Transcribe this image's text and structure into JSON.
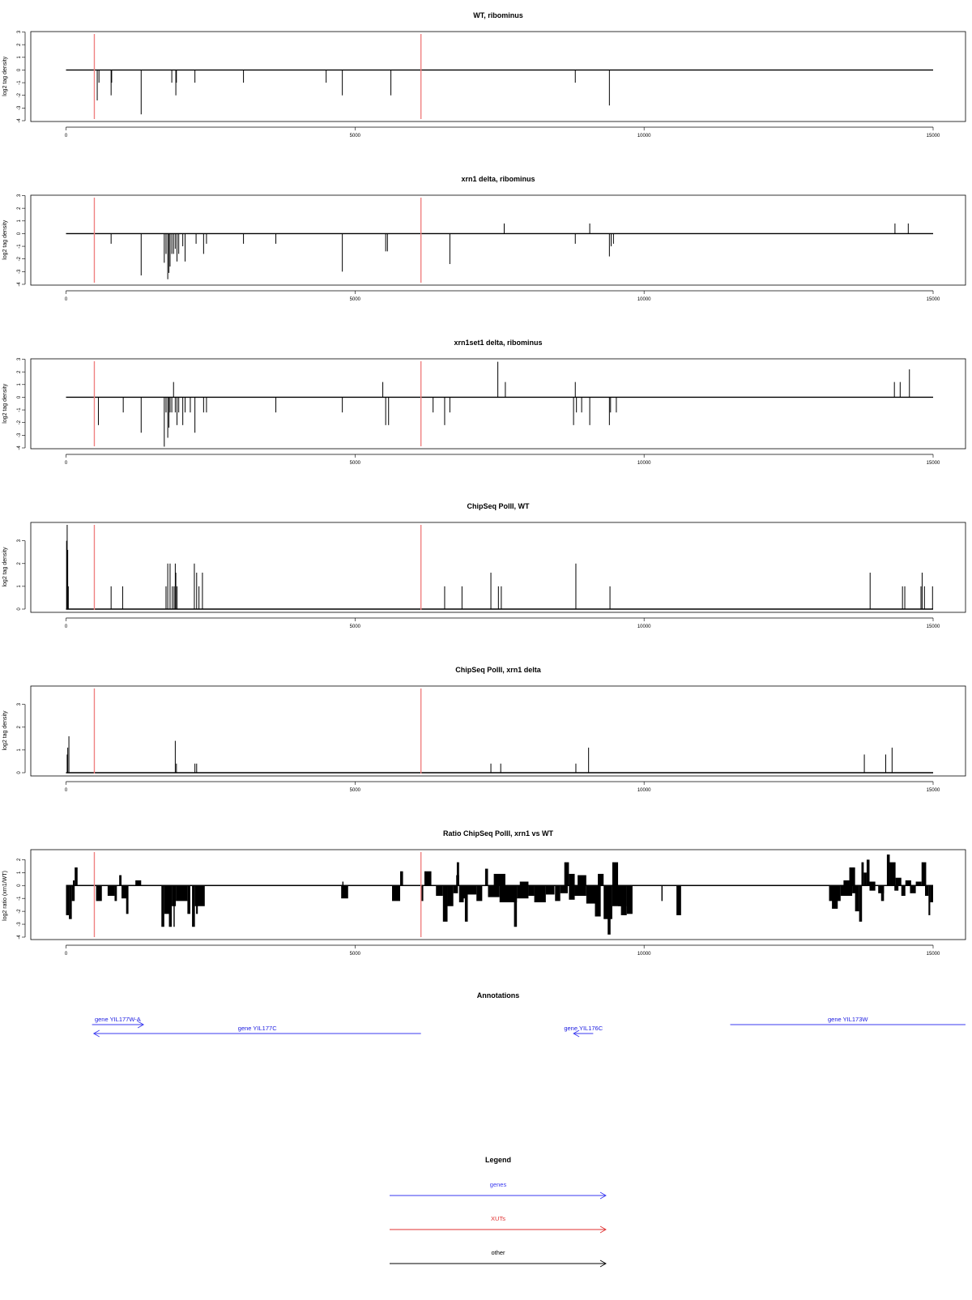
{
  "colors": {
    "xut": "#f08080",
    "gene": "#3a3af0",
    "bar": "#000000",
    "axis": "#000000",
    "legend_xut": "#e03030"
  },
  "chart_data": [
    {
      "type": "bar",
      "title": "WT, ribominus",
      "ylabel": "log2 tag density",
      "xlim": [
        0,
        15000
      ],
      "ylim": [
        -4,
        3
      ],
      "xticks": [
        0,
        5000,
        10000,
        15000
      ],
      "xtick_labels": [
        "0",
        "5000",
        "10000",
        "15000"
      ],
      "yticks": [
        3,
        2,
        1,
        0,
        -1,
        -2,
        -3,
        -4
      ],
      "ytick_labels": [
        "3",
        "2",
        "1",
        "0",
        "-1",
        "-2",
        "-3",
        "-4"
      ],
      "xut_markers": [
        490,
        6140
      ],
      "bars": [
        [
          540,
          -2.4
        ],
        [
          570,
          -1.0
        ],
        [
          780,
          -2.0
        ],
        [
          790,
          -1.0
        ],
        [
          1300,
          -3.5
        ],
        [
          1830,
          -1.0
        ],
        [
          1900,
          -2.0
        ],
        [
          1910,
          -1.0
        ],
        [
          2230,
          -1.0
        ],
        [
          3070,
          -1.0
        ],
        [
          4500,
          -1.0
        ],
        [
          4780,
          -2.0
        ],
        [
          5620,
          -2.0
        ],
        [
          8810,
          -1.0
        ],
        [
          9400,
          -2.8
        ]
      ]
    },
    {
      "type": "bar",
      "title": "xrn1 delta, ribominus",
      "ylabel": "log2 tag density",
      "xlim": [
        0,
        15000
      ],
      "ylim": [
        -4,
        3
      ],
      "xticks": [
        0,
        5000,
        10000,
        15000
      ],
      "xtick_labels": [
        "0",
        "5000",
        "10000",
        "15000"
      ],
      "yticks": [
        3,
        2,
        1,
        0,
        -1,
        -2,
        -3,
        -4
      ],
      "ytick_labels": [
        "3",
        "2",
        "1",
        "0",
        "-1",
        "-2",
        "-3",
        "-4"
      ],
      "xut_markers": [
        490,
        6140
      ],
      "bars": [
        [
          780,
          -0.8
        ],
        [
          1300,
          -3.3
        ],
        [
          1700,
          -2.3
        ],
        [
          1730,
          -1.6
        ],
        [
          1760,
          -3.6
        ],
        [
          1780,
          -3.1
        ],
        [
          1800,
          -2.6
        ],
        [
          1830,
          -1.6
        ],
        [
          1860,
          -1.6
        ],
        [
          1890,
          -1.2
        ],
        [
          1920,
          -2.2
        ],
        [
          1950,
          -1.6
        ],
        [
          2020,
          -1.0
        ],
        [
          2060,
          -2.2
        ],
        [
          2250,
          -0.8
        ],
        [
          2380,
          -1.6
        ],
        [
          2430,
          -0.8
        ],
        [
          3070,
          -0.8
        ],
        [
          3630,
          -0.8
        ],
        [
          4780,
          -3.0
        ],
        [
          5530,
          -1.4
        ],
        [
          5560,
          -1.4
        ],
        [
          6640,
          -2.4
        ],
        [
          7580,
          0.8
        ],
        [
          8810,
          -0.8
        ],
        [
          9060,
          0.8
        ],
        [
          9400,
          -1.8
        ],
        [
          9430,
          -1.0
        ],
        [
          9470,
          -0.8
        ],
        [
          14340,
          0.8
        ],
        [
          14570,
          0.8
        ]
      ]
    },
    {
      "type": "bar",
      "title": "xrn1set1 delta, ribominus",
      "ylabel": "log2 tag density",
      "xlim": [
        0,
        15000
      ],
      "ylim": [
        -4,
        3
      ],
      "xticks": [
        0,
        5000,
        10000,
        15000
      ],
      "xtick_labels": [
        "0",
        "5000",
        "10000",
        "15000"
      ],
      "yticks": [
        3,
        2,
        1,
        0,
        -1,
        -2,
        -3,
        -4
      ],
      "ytick_labels": [
        "3",
        "2",
        "1",
        "0",
        "-1",
        "-2",
        "-3",
        "-4"
      ],
      "xut_markers": [
        490,
        6140
      ],
      "bars": [
        [
          560,
          -2.2
        ],
        [
          990,
          -1.2
        ],
        [
          1300,
          -2.8
        ],
        [
          1700,
          -3.9
        ],
        [
          1730,
          -1.2
        ],
        [
          1760,
          -3.2
        ],
        [
          1780,
          -2.4
        ],
        [
          1800,
          -1.2
        ],
        [
          1830,
          -1.2
        ],
        [
          1860,
          1.2
        ],
        [
          1890,
          -1.2
        ],
        [
          1920,
          -2.2
        ],
        [
          1950,
          -1.2
        ],
        [
          2020,
          -2.2
        ],
        [
          2060,
          -1.2
        ],
        [
          2150,
          -1.2
        ],
        [
          2230,
          -2.8
        ],
        [
          2380,
          -1.2
        ],
        [
          2430,
          -1.2
        ],
        [
          3630,
          -1.2
        ],
        [
          4780,
          -1.2
        ],
        [
          5480,
          1.2
        ],
        [
          5530,
          -2.2
        ],
        [
          5580,
          -2.2
        ],
        [
          6350,
          -1.2
        ],
        [
          6550,
          -2.2
        ],
        [
          6640,
          -1.2
        ],
        [
          7470,
          2.8
        ],
        [
          7600,
          1.2
        ],
        [
          8780,
          -2.2
        ],
        [
          8810,
          1.2
        ],
        [
          8830,
          -1.2
        ],
        [
          8920,
          -1.2
        ],
        [
          9060,
          -2.2
        ],
        [
          9400,
          -2.2
        ],
        [
          9420,
          -1.2
        ],
        [
          9520,
          -1.2
        ],
        [
          14330,
          1.2
        ],
        [
          14430,
          1.2
        ],
        [
          14590,
          2.2
        ]
      ]
    },
    {
      "type": "bar",
      "title": "ChipSeq PolII, WT",
      "ylabel": "log2 tag density",
      "xlim": [
        0,
        15000
      ],
      "ylim": [
        0,
        3.7
      ],
      "xticks": [
        0,
        5000,
        10000,
        15000
      ],
      "xtick_labels": [
        "0",
        "5000",
        "10000",
        "15000"
      ],
      "yticks": [
        3,
        2,
        1,
        0
      ],
      "ytick_labels": [
        "3",
        "2",
        "1",
        "0"
      ],
      "xut_markers": [
        490,
        6140
      ],
      "bars": [
        [
          10,
          3.0
        ],
        [
          20,
          3.7
        ],
        [
          30,
          2.6
        ],
        [
          40,
          1.0
        ],
        [
          780,
          1.0
        ],
        [
          980,
          1.0
        ],
        [
          1730,
          1.0
        ],
        [
          1760,
          2.0
        ],
        [
          1800,
          2.0
        ],
        [
          1840,
          1.0
        ],
        [
          1870,
          1.0
        ],
        [
          1890,
          2.0
        ],
        [
          1900,
          1.6
        ],
        [
          1920,
          1.0
        ],
        [
          2220,
          2.0
        ],
        [
          2260,
          1.6
        ],
        [
          2300,
          1.0
        ],
        [
          2360,
          1.6
        ],
        [
          6550,
          1.0
        ],
        [
          6850,
          1.0
        ],
        [
          7350,
          1.6
        ],
        [
          7480,
          1.0
        ],
        [
          7530,
          1.0
        ],
        [
          8820,
          2.0
        ],
        [
          9410,
          1.0
        ],
        [
          13910,
          1.6
        ],
        [
          14470,
          1.0
        ],
        [
          14510,
          1.0
        ],
        [
          14790,
          1.0
        ],
        [
          14810,
          1.6
        ],
        [
          14850,
          1.0
        ],
        [
          14990,
          1.0
        ]
      ]
    },
    {
      "type": "bar",
      "title": "ChipSeq PolII, xrn1 delta",
      "ylabel": "log2 tag density",
      "xlim": [
        0,
        15000
      ],
      "ylim": [
        0,
        3.7
      ],
      "xticks": [
        0,
        5000,
        10000,
        15000
      ],
      "xtick_labels": [
        "0",
        "5000",
        "10000",
        "15000"
      ],
      "yticks": [
        3,
        2,
        1,
        0
      ],
      "ytick_labels": [
        "3",
        "2",
        "1",
        "0"
      ],
      "xut_markers": [
        490,
        6140
      ],
      "bars": [
        [
          20,
          0.8
        ],
        [
          30,
          1.1
        ],
        [
          50,
          1.6
        ],
        [
          1890,
          1.4
        ],
        [
          1910,
          0.4
        ],
        [
          2230,
          0.4
        ],
        [
          2260,
          0.4
        ],
        [
          7350,
          0.4
        ],
        [
          7520,
          0.4
        ],
        [
          8820,
          0.4
        ],
        [
          9040,
          1.1
        ],
        [
          13810,
          0.8
        ],
        [
          14180,
          0.8
        ],
        [
          14290,
          1.1
        ]
      ]
    },
    {
      "type": "area",
      "title": "Ratio ChipSeq PolII, xrn1 vs WT",
      "ylabel": "log2 ratio (xrn1/WT)",
      "xlim": [
        0,
        15000
      ],
      "ylim": [
        -4,
        2.4
      ],
      "xticks": [
        0,
        5000,
        10000,
        15000
      ],
      "xtick_labels": [
        "0",
        "5000",
        "10000",
        "15000"
      ],
      "yticks": [
        2,
        1,
        0,
        -1,
        -2,
        -3,
        -4
      ],
      "ytick_labels": [
        "2",
        "1",
        "0",
        "-1",
        "-2",
        "-3",
        "-4"
      ],
      "xut_markers": [
        490,
        6140
      ],
      "segments": [
        [
          0,
          50,
          -2.3
        ],
        [
          50,
          100,
          -2.6
        ],
        [
          100,
          150,
          -1.2
        ],
        [
          120,
          150,
          0.4
        ],
        [
          150,
          200,
          1.4
        ],
        [
          520,
          620,
          -1.2
        ],
        [
          720,
          840,
          -0.8
        ],
        [
          840,
          880,
          -1.2
        ],
        [
          920,
          960,
          0.8
        ],
        [
          960,
          1060,
          -1.0
        ],
        [
          1040,
          1080,
          -2.2
        ],
        [
          1200,
          1300,
          0.4
        ],
        [
          1650,
          1700,
          -3.2
        ],
        [
          1700,
          1800,
          -2.2
        ],
        [
          1780,
          1830,
          -3.2
        ],
        [
          1830,
          1900,
          -1.6
        ],
        [
          1860,
          1880,
          -3.2
        ],
        [
          1900,
          2100,
          -1.2
        ],
        [
          2100,
          2150,
          -2.2
        ],
        [
          2180,
          2230,
          -3.2
        ],
        [
          2230,
          2400,
          -1.6
        ],
        [
          2250,
          2280,
          -2.2
        ],
        [
          4760,
          4880,
          -1.0
        ],
        [
          4780,
          4800,
          0.3
        ],
        [
          5640,
          5780,
          -1.2
        ],
        [
          5700,
          5760,
          -0.5
        ],
        [
          5780,
          5830,
          1.1
        ],
        [
          6150,
          6180,
          -1.2
        ],
        [
          6200,
          6320,
          1.1
        ],
        [
          6400,
          6520,
          -0.8
        ],
        [
          6520,
          6600,
          -2.8
        ],
        [
          6600,
          6700,
          -1.6
        ],
        [
          6700,
          6780,
          -0.6
        ],
        [
          6750,
          6800,
          0.8
        ],
        [
          6760,
          6800,
          1.8
        ],
        [
          6800,
          6880,
          -1.3
        ],
        [
          6880,
          6940,
          -1.0
        ],
        [
          6900,
          6950,
          -2.8
        ],
        [
          6950,
          7100,
          -0.7
        ],
        [
          7100,
          7200,
          -1.2
        ],
        [
          7250,
          7300,
          1.3
        ],
        [
          7300,
          7500,
          -0.9
        ],
        [
          7400,
          7600,
          0.9
        ],
        [
          7500,
          7800,
          -1.3
        ],
        [
          7750,
          7800,
          -3.2
        ],
        [
          7800,
          8000,
          -1.0
        ],
        [
          7850,
          8000,
          0.3
        ],
        [
          8000,
          8100,
          -0.8
        ],
        [
          8100,
          8300,
          -1.3
        ],
        [
          8300,
          8450,
          -0.7
        ],
        [
          8460,
          8550,
          -1.2
        ],
        [
          8550,
          8680,
          -0.6
        ],
        [
          8620,
          8700,
          1.8
        ],
        [
          8700,
          8800,
          -1.1
        ],
        [
          8700,
          8800,
          0.9
        ],
        [
          8800,
          9000,
          -0.8
        ],
        [
          8850,
          9000,
          0.8
        ],
        [
          9000,
          9200,
          -1.4
        ],
        [
          9150,
          9250,
          -2.4
        ],
        [
          9200,
          9300,
          0.9
        ],
        [
          9300,
          9450,
          -2.6
        ],
        [
          9370,
          9420,
          -3.8
        ],
        [
          9450,
          9550,
          1.8
        ],
        [
          9450,
          9600,
          -1.6
        ],
        [
          9550,
          9700,
          -1.6
        ],
        [
          9600,
          9700,
          -2.3
        ],
        [
          9700,
          9800,
          -2.2
        ],
        [
          10300,
          10320,
          -1.2
        ],
        [
          10560,
          10640,
          -2.3
        ],
        [
          13200,
          13400,
          -1.2
        ],
        [
          13250,
          13350,
          -1.8
        ],
        [
          13400,
          13600,
          -0.8
        ],
        [
          13450,
          13550,
          0.4
        ],
        [
          13550,
          13650,
          1.4
        ],
        [
          13600,
          13700,
          -0.6
        ],
        [
          13650,
          13720,
          -2.0
        ],
        [
          13720,
          13770,
          -2.8
        ],
        [
          13760,
          13800,
          1.8
        ],
        [
          13800,
          13850,
          1.0
        ],
        [
          13850,
          13900,
          2.0
        ],
        [
          13900,
          14000,
          -0.4
        ],
        [
          13900,
          14000,
          0.3
        ],
        [
          14050,
          14150,
          -0.6
        ],
        [
          14100,
          14150,
          -1.2
        ],
        [
          14200,
          14250,
          2.4
        ],
        [
          14250,
          14350,
          1.8
        ],
        [
          14330,
          14400,
          -0.4
        ],
        [
          14350,
          14450,
          0.6
        ],
        [
          14450,
          14520,
          -0.8
        ],
        [
          14520,
          14620,
          0.4
        ],
        [
          14600,
          14700,
          -0.6
        ],
        [
          14700,
          14800,
          0.3
        ],
        [
          14800,
          14880,
          1.8
        ],
        [
          14860,
          14920,
          -0.8
        ],
        [
          14920,
          14950,
          -2.3
        ],
        [
          14950,
          15000,
          -1.3
        ]
      ]
    }
  ],
  "annotations": {
    "title": "Annotations",
    "xlim": [
      0,
      15000
    ],
    "genes": [
      {
        "label": "gene YIL177W-A",
        "start": 450,
        "end": 1340,
        "dir": "+",
        "row": 0
      },
      {
        "label": "gene YIL177C",
        "start": 480,
        "end": 6140,
        "dir": "-",
        "row": 1
      },
      {
        "label": "gene YIL176C",
        "start": 8780,
        "end": 9120,
        "dir": "-",
        "row": 1
      },
      {
        "label": "gene YIL173W",
        "start": 11490,
        "end": 15650,
        "dir": "none",
        "row": 0
      }
    ]
  },
  "legend": {
    "title": "Legend",
    "items": [
      {
        "label": "genes",
        "color": "#3a3af0"
      },
      {
        "label": "XUTs",
        "color": "#e03030"
      },
      {
        "label": "other",
        "color": "#000000"
      }
    ]
  }
}
